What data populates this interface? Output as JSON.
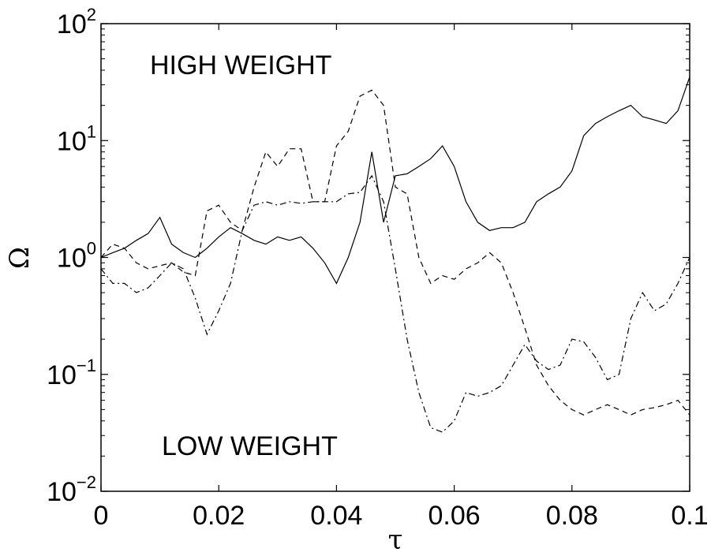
{
  "chart_data": {
    "type": "line",
    "xlabel": "τ",
    "ylabel": "Ω",
    "xlim": [
      0,
      0.1
    ],
    "ylim": [
      0.01,
      100
    ],
    "yscale": "log",
    "grid": false,
    "x_ticks": [
      "0",
      "0.02",
      "0.04",
      "0.06",
      "0.08",
      "0.1"
    ],
    "y_ticks": [
      {
        "base": "10",
        "exp": "−2",
        "value": 0.01
      },
      {
        "base": "10",
        "exp": "−1",
        "value": 0.1
      },
      {
        "base": "10",
        "exp": "0",
        "value": 1
      },
      {
        "base": "10",
        "exp": "1",
        "value": 10
      },
      {
        "base": "10",
        "exp": "2",
        "value": 100
      }
    ],
    "annotations": [
      "HIGH WEIGHT",
      "LOW WEIGHT"
    ],
    "series": [
      {
        "style": "solid",
        "x": [
          0,
          0.002,
          0.004,
          0.006,
          0.008,
          0.01,
          0.012,
          0.014,
          0.016,
          0.018,
          0.02,
          0.022,
          0.024,
          0.026,
          0.028,
          0.03,
          0.032,
          0.034,
          0.036,
          0.038,
          0.04,
          0.042,
          0.044,
          0.046,
          0.048,
          0.05,
          0.052,
          0.054,
          0.056,
          0.058,
          0.06,
          0.062,
          0.064,
          0.066,
          0.068,
          0.07,
          0.072,
          0.074,
          0.076,
          0.078,
          0.08,
          0.082,
          0.084,
          0.086,
          0.088,
          0.09,
          0.092,
          0.094,
          0.096,
          0.098,
          0.1
        ],
        "y": [
          1.0,
          1.1,
          1.2,
          1.4,
          1.6,
          2.2,
          1.3,
          1.1,
          1.0,
          1.2,
          1.5,
          1.8,
          1.6,
          1.4,
          1.3,
          1.5,
          1.4,
          1.5,
          1.2,
          0.9,
          0.6,
          1.0,
          2.0,
          8.0,
          2.0,
          5.0,
          5.2,
          6.0,
          7.0,
          9.0,
          6.0,
          3.0,
          2.0,
          1.7,
          1.8,
          1.8,
          2.0,
          3.0,
          3.5,
          4.0,
          5.5,
          11.0,
          14.0,
          16.0,
          18.0,
          20.0,
          16.0,
          15.0,
          14.0,
          18.0,
          35.0
        ]
      },
      {
        "style": "dashed",
        "x": [
          0,
          0.002,
          0.004,
          0.006,
          0.008,
          0.01,
          0.012,
          0.014,
          0.016,
          0.018,
          0.02,
          0.022,
          0.024,
          0.026,
          0.028,
          0.03,
          0.032,
          0.034,
          0.036,
          0.038,
          0.04,
          0.042,
          0.044,
          0.046,
          0.048,
          0.05,
          0.052,
          0.054,
          0.056,
          0.058,
          0.06,
          0.062,
          0.064,
          0.066,
          0.068,
          0.07,
          0.072,
          0.074,
          0.076,
          0.078,
          0.08,
          0.082,
          0.084,
          0.086,
          0.088,
          0.09,
          0.092,
          0.094,
          0.096,
          0.098,
          0.1
        ],
        "y": [
          1.0,
          1.3,
          1.2,
          0.9,
          0.8,
          0.85,
          0.9,
          0.75,
          0.7,
          2.5,
          2.8,
          2.0,
          1.7,
          4.0,
          8.0,
          6.0,
          8.5,
          8.5,
          3.0,
          3.0,
          9.0,
          12.0,
          24.0,
          27.0,
          20.0,
          4.0,
          3.5,
          1.0,
          0.6,
          0.7,
          0.65,
          0.8,
          0.9,
          1.1,
          0.9,
          0.5,
          0.25,
          0.12,
          0.08,
          0.06,
          0.05,
          0.045,
          0.05,
          0.055,
          0.05,
          0.045,
          0.05,
          0.052,
          0.055,
          0.06,
          0.045
        ]
      },
      {
        "style": "dashdot",
        "x": [
          0,
          0.002,
          0.004,
          0.006,
          0.008,
          0.01,
          0.012,
          0.014,
          0.016,
          0.018,
          0.02,
          0.022,
          0.024,
          0.026,
          0.028,
          0.03,
          0.032,
          0.034,
          0.036,
          0.038,
          0.04,
          0.042,
          0.044,
          0.046,
          0.048,
          0.05,
          0.052,
          0.054,
          0.056,
          0.058,
          0.06,
          0.062,
          0.064,
          0.066,
          0.068,
          0.07,
          0.072,
          0.074,
          0.076,
          0.078,
          0.08,
          0.082,
          0.084,
          0.086,
          0.088,
          0.09,
          0.092,
          0.094,
          0.096,
          0.098,
          0.1
        ],
        "y": [
          0.8,
          0.6,
          0.6,
          0.5,
          0.55,
          0.7,
          0.9,
          0.8,
          0.45,
          0.22,
          0.35,
          0.6,
          1.7,
          2.8,
          3.0,
          2.8,
          3.0,
          2.9,
          3.0,
          3.0,
          3.0,
          3.5,
          3.6,
          5.0,
          3.0,
          0.8,
          0.2,
          0.07,
          0.035,
          0.032,
          0.04,
          0.07,
          0.065,
          0.07,
          0.08,
          0.12,
          0.18,
          0.13,
          0.11,
          0.12,
          0.2,
          0.19,
          0.14,
          0.09,
          0.1,
          0.3,
          0.5,
          0.35,
          0.4,
          0.6,
          1.0
        ]
      }
    ]
  }
}
